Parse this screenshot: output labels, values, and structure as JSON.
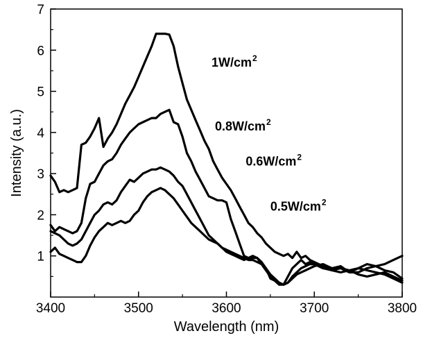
{
  "chart_data": {
    "type": "line",
    "title": "",
    "xlabel": "Wavelength (nm)",
    "ylabel": "Intensity (a.u.)",
    "xlim": [
      3400,
      3800
    ],
    "ylim": [
      0,
      7
    ],
    "xticks": [
      3400,
      3500,
      3600,
      3700,
      3800
    ],
    "yticks": [
      1,
      2,
      3,
      4,
      5,
      6,
      7
    ],
    "grid": false,
    "legend": "none",
    "line_color": "#000000",
    "annotations": [
      {
        "text": "1W/cm",
        "sup": "2",
        "x": 3583,
        "y": 5.6
      },
      {
        "text": "0.8W/cm",
        "sup": "2",
        "x": 3587,
        "y": 4.05
      },
      {
        "text": "0.6W/cm",
        "sup": "2",
        "x": 3622,
        "y": 3.2
      },
      {
        "text": "0.5W/cm",
        "sup": "2",
        "x": 3650,
        "y": 2.1
      }
    ],
    "series": [
      {
        "x": [
          3400,
          3405,
          3410,
          3415,
          3420,
          3425,
          3430,
          3435,
          3440,
          3445,
          3450,
          3455,
          3460,
          3465,
          3470,
          3475,
          3480,
          3485,
          3490,
          3495,
          3500,
          3505,
          3510,
          3515,
          3520,
          3525,
          3530,
          3535,
          3540,
          3545,
          3550,
          3555,
          3560,
          3565,
          3570,
          3575,
          3580,
          3585,
          3590,
          3595,
          3600,
          3605,
          3610,
          3615,
          3620,
          3625,
          3630,
          3635,
          3640,
          3645,
          3650,
          3655,
          3660,
          3665,
          3670,
          3675,
          3680,
          3685,
          3690,
          3695,
          3700,
          3710,
          3720,
          3730,
          3740,
          3750,
          3760,
          3770,
          3780,
          3790,
          3800
        ],
        "y": [
          2.95,
          2.8,
          2.55,
          2.6,
          2.55,
          2.6,
          2.65,
          3.7,
          3.75,
          3.9,
          4.1,
          4.35,
          3.65,
          3.85,
          4.0,
          4.2,
          4.45,
          4.7,
          4.9,
          5.1,
          5.35,
          5.6,
          5.85,
          6.1,
          6.4,
          6.4,
          6.4,
          6.38,
          6.1,
          5.6,
          5.2,
          4.8,
          4.55,
          4.3,
          4.05,
          3.8,
          3.6,
          3.3,
          3.1,
          2.9,
          2.75,
          2.6,
          2.4,
          2.2,
          2.0,
          1.8,
          1.7,
          1.55,
          1.45,
          1.3,
          1.2,
          1.1,
          1.05,
          1.0,
          1.05,
          0.95,
          1.1,
          0.95,
          1.0,
          0.9,
          0.85,
          0.75,
          0.65,
          0.7,
          0.6,
          0.7,
          0.8,
          0.75,
          0.8,
          0.9,
          1.0
        ]
      },
      {
        "x": [
          3400,
          3405,
          3410,
          3415,
          3420,
          3425,
          3430,
          3435,
          3440,
          3445,
          3450,
          3455,
          3460,
          3465,
          3470,
          3475,
          3480,
          3485,
          3490,
          3495,
          3500,
          3505,
          3510,
          3515,
          3520,
          3525,
          3530,
          3535,
          3540,
          3545,
          3550,
          3555,
          3560,
          3565,
          3570,
          3575,
          3580,
          3585,
          3590,
          3595,
          3600,
          3605,
          3610,
          3615,
          3620,
          3625,
          3630,
          3635,
          3640,
          3645,
          3650,
          3655,
          3660,
          3665,
          3670,
          3675,
          3680,
          3685,
          3690,
          3695,
          3700,
          3710,
          3720,
          3730,
          3740,
          3750,
          3760,
          3770,
          3780,
          3790,
          3800
        ],
        "y": [
          1.75,
          1.6,
          1.7,
          1.65,
          1.6,
          1.55,
          1.6,
          1.8,
          2.4,
          2.75,
          2.8,
          3.0,
          3.2,
          3.3,
          3.35,
          3.5,
          3.7,
          3.85,
          4.0,
          4.1,
          4.2,
          4.25,
          4.3,
          4.35,
          4.35,
          4.45,
          4.5,
          4.55,
          4.25,
          4.2,
          3.9,
          3.5,
          3.3,
          3.05,
          2.85,
          2.65,
          2.45,
          2.4,
          2.35,
          2.35,
          2.3,
          1.9,
          1.6,
          1.3,
          1.0,
          0.95,
          0.95,
          0.95,
          0.8,
          0.7,
          0.45,
          0.4,
          0.3,
          0.3,
          0.5,
          0.7,
          0.8,
          0.9,
          0.8,
          0.85,
          0.8,
          0.7,
          0.7,
          0.75,
          0.6,
          0.6,
          0.7,
          0.75,
          0.65,
          0.6,
          0.45
        ]
      },
      {
        "x": [
          3400,
          3405,
          3410,
          3415,
          3420,
          3425,
          3430,
          3435,
          3440,
          3445,
          3450,
          3455,
          3460,
          3465,
          3470,
          3475,
          3480,
          3485,
          3490,
          3495,
          3500,
          3505,
          3510,
          3515,
          3520,
          3525,
          3530,
          3535,
          3540,
          3545,
          3550,
          3555,
          3560,
          3565,
          3570,
          3575,
          3580,
          3585,
          3590,
          3595,
          3600,
          3605,
          3610,
          3615,
          3620,
          3625,
          3630,
          3635,
          3640,
          3645,
          3650,
          3655,
          3660,
          3665,
          3670,
          3675,
          3680,
          3685,
          3690,
          3695,
          3700,
          3710,
          3720,
          3730,
          3740,
          3750,
          3760,
          3770,
          3780,
          3790,
          3800
        ],
        "y": [
          1.6,
          1.55,
          1.5,
          1.4,
          1.3,
          1.25,
          1.3,
          1.4,
          1.6,
          1.8,
          2.0,
          2.1,
          2.25,
          2.3,
          2.25,
          2.35,
          2.55,
          2.7,
          2.85,
          2.8,
          2.9,
          3.0,
          3.05,
          3.1,
          3.1,
          3.15,
          3.1,
          3.05,
          2.95,
          2.8,
          2.7,
          2.5,
          2.3,
          2.1,
          1.9,
          1.7,
          1.5,
          1.4,
          1.3,
          1.2,
          1.1,
          1.05,
          1.0,
          0.95,
          0.9,
          0.95,
          1.0,
          0.95,
          0.85,
          0.7,
          0.55,
          0.45,
          0.35,
          0.3,
          0.35,
          0.5,
          0.6,
          0.7,
          0.75,
          0.8,
          0.8,
          0.7,
          0.65,
          0.6,
          0.65,
          0.55,
          0.5,
          0.55,
          0.6,
          0.5,
          0.4
        ]
      },
      {
        "x": [
          3400,
          3405,
          3410,
          3415,
          3420,
          3425,
          3430,
          3435,
          3440,
          3445,
          3450,
          3455,
          3460,
          3465,
          3470,
          3475,
          3480,
          3485,
          3490,
          3495,
          3500,
          3505,
          3510,
          3515,
          3520,
          3525,
          3530,
          3535,
          3540,
          3545,
          3550,
          3555,
          3560,
          3565,
          3570,
          3575,
          3580,
          3585,
          3590,
          3595,
          3600,
          3605,
          3610,
          3615,
          3620,
          3625,
          3630,
          3635,
          3640,
          3645,
          3650,
          3655,
          3660,
          3665,
          3670,
          3675,
          3680,
          3685,
          3690,
          3695,
          3700,
          3710,
          3720,
          3730,
          3740,
          3750,
          3760,
          3770,
          3780,
          3790,
          3800
        ],
        "y": [
          1.1,
          1.2,
          1.05,
          1.0,
          0.95,
          0.9,
          0.85,
          0.85,
          1.0,
          1.25,
          1.45,
          1.6,
          1.7,
          1.8,
          1.75,
          1.8,
          1.85,
          1.8,
          1.85,
          2.0,
          2.1,
          2.3,
          2.45,
          2.55,
          2.6,
          2.65,
          2.6,
          2.5,
          2.4,
          2.25,
          2.1,
          1.95,
          1.8,
          1.7,
          1.6,
          1.5,
          1.4,
          1.35,
          1.3,
          1.2,
          1.15,
          1.1,
          1.05,
          1.0,
          0.95,
          0.9,
          0.9,
          0.85,
          0.8,
          0.65,
          0.5,
          0.4,
          0.35,
          0.3,
          0.35,
          0.45,
          0.55,
          0.6,
          0.65,
          0.7,
          0.75,
          0.8,
          0.7,
          0.7,
          0.65,
          0.7,
          0.65,
          0.6,
          0.55,
          0.45,
          0.35
        ]
      }
    ]
  }
}
